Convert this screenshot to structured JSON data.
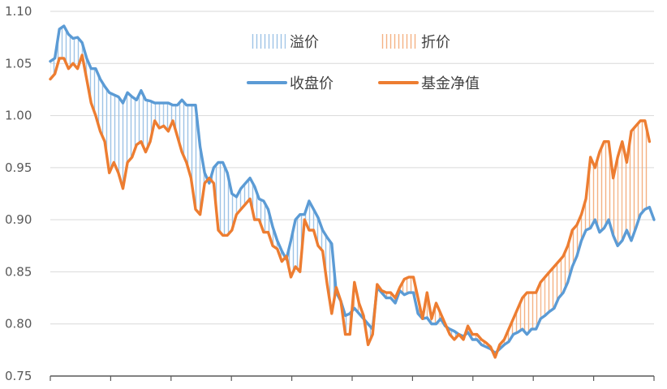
{
  "chart_data": {
    "type": "line",
    "ylim": [
      0.75,
      1.1
    ],
    "y_ticks": [
      "0.75",
      "0.80",
      "0.85",
      "0.90",
      "0.95",
      "1.00",
      "1.05",
      "1.10"
    ],
    "y_tick_values": [
      0.75,
      0.8,
      0.85,
      0.9,
      0.95,
      1.0,
      1.05,
      1.1
    ],
    "x_tick_count": 10,
    "grid": "horizontal",
    "legend_position": "top-center",
    "legend": {
      "premium": "溢价",
      "discount": "折价",
      "close": "收盘价",
      "nav": "基金净值"
    },
    "colors": {
      "close": "#5b9bd5",
      "nav": "#ed7d31",
      "premium_hatch": "#9dc3e6",
      "discount_hatch": "#f4b183"
    },
    "series": [
      {
        "name": "收盘价",
        "values": [
          1.052,
          1.055,
          1.083,
          1.086,
          1.078,
          1.074,
          1.075,
          1.07,
          1.055,
          1.045,
          1.045,
          1.035,
          1.028,
          1.022,
          1.02,
          1.018,
          1.012,
          1.022,
          1.018,
          1.015,
          1.024,
          1.015,
          1.014,
          1.012,
          1.012,
          1.012,
          1.012,
          1.01,
          1.01,
          1.015,
          1.01,
          1.01,
          1.01,
          0.97,
          0.945,
          0.935,
          0.95,
          0.955,
          0.955,
          0.945,
          0.925,
          0.922,
          0.93,
          0.935,
          0.94,
          0.932,
          0.92,
          0.918,
          0.91,
          0.893,
          0.88,
          0.87,
          0.862,
          0.88,
          0.9,
          0.905,
          0.905,
          0.918,
          0.91,
          0.902,
          0.89,
          0.883,
          0.877,
          0.83,
          0.822,
          0.808,
          0.81,
          0.815,
          0.81,
          0.805,
          0.8,
          0.795,
          0.835,
          0.83,
          0.825,
          0.825,
          0.82,
          0.832,
          0.828,
          0.83,
          0.83,
          0.81,
          0.805,
          0.806,
          0.8,
          0.8,
          0.805,
          0.798,
          0.795,
          0.793,
          0.79,
          0.788,
          0.792,
          0.785,
          0.785,
          0.78,
          0.778,
          0.776,
          0.772,
          0.776,
          0.78,
          0.783,
          0.79,
          0.792,
          0.795,
          0.79,
          0.795,
          0.795,
          0.805,
          0.808,
          0.812,
          0.815,
          0.825,
          0.83,
          0.84,
          0.855,
          0.865,
          0.88,
          0.89,
          0.892,
          0.9,
          0.888,
          0.892,
          0.9,
          0.885,
          0.875,
          0.88,
          0.89,
          0.88,
          0.892,
          0.905,
          0.91,
          0.912,
          0.9
        ]
      },
      {
        "name": "基金净值",
        "values": [
          1.035,
          1.04,
          1.055,
          1.055,
          1.045,
          1.05,
          1.045,
          1.058,
          1.035,
          1.012,
          1.0,
          0.985,
          0.975,
          0.945,
          0.955,
          0.945,
          0.93,
          0.955,
          0.96,
          0.972,
          0.975,
          0.965,
          0.975,
          0.995,
          0.988,
          0.99,
          0.985,
          0.995,
          0.98,
          0.965,
          0.955,
          0.94,
          0.91,
          0.905,
          0.935,
          0.94,
          0.935,
          0.89,
          0.885,
          0.885,
          0.89,
          0.905,
          0.91,
          0.915,
          0.92,
          0.9,
          0.9,
          0.888,
          0.888,
          0.875,
          0.872,
          0.86,
          0.865,
          0.845,
          0.855,
          0.85,
          0.9,
          0.89,
          0.89,
          0.875,
          0.87,
          0.838,
          0.81,
          0.835,
          0.822,
          0.79,
          0.79,
          0.84,
          0.82,
          0.808,
          0.78,
          0.79,
          0.838,
          0.832,
          0.83,
          0.83,
          0.825,
          0.835,
          0.843,
          0.845,
          0.845,
          0.825,
          0.805,
          0.83,
          0.805,
          0.82,
          0.81,
          0.8,
          0.79,
          0.785,
          0.79,
          0.785,
          0.798,
          0.79,
          0.79,
          0.785,
          0.782,
          0.778,
          0.768,
          0.78,
          0.785,
          0.795,
          0.805,
          0.815,
          0.825,
          0.83,
          0.83,
          0.83,
          0.84,
          0.845,
          0.85,
          0.855,
          0.86,
          0.865,
          0.875,
          0.89,
          0.895,
          0.905,
          0.92,
          0.96,
          0.95,
          0.965,
          0.975,
          0.975,
          0.94,
          0.96,
          0.975,
          0.955,
          0.985,
          0.99,
          0.995,
          0.995,
          0.975
        ]
      }
    ]
  }
}
